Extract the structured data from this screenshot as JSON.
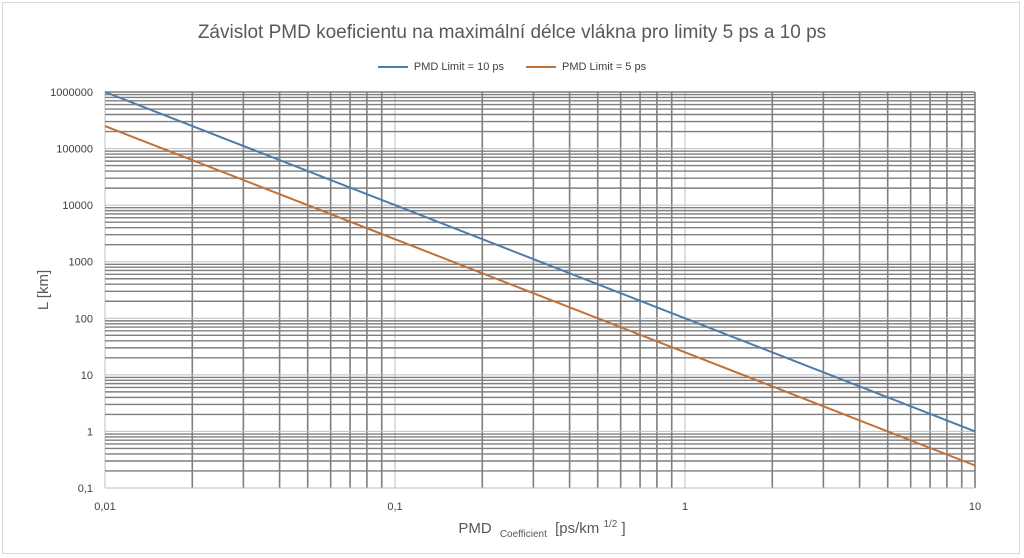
{
  "chart_data": {
    "type": "line",
    "title": "Závislot PMD koeficientu na maximální délce vlákna pro limity 5 ps a 10 ps",
    "xlabel": {
      "main": "PMD",
      "subscript": "Coefficient",
      "unit_base": "[ps/km",
      "unit_sup": "1/2",
      "unit_end": "]"
    },
    "ylabel": "L [km]",
    "x_scale": "log",
    "y_scale": "log",
    "xlim": [
      0.01,
      10
    ],
    "ylim": [
      0.1,
      1000000
    ],
    "x_ticks": [
      {
        "value": 0.01,
        "label": "0,01"
      },
      {
        "value": 0.1,
        "label": "0,1"
      },
      {
        "value": 1,
        "label": "1"
      },
      {
        "value": 10,
        "label": "10"
      }
    ],
    "y_ticks": [
      {
        "value": 0.1,
        "label": "0,1"
      },
      {
        "value": 1,
        "label": "1"
      },
      {
        "value": 10,
        "label": "10"
      },
      {
        "value": 100,
        "label": "100"
      },
      {
        "value": 1000,
        "label": "1000"
      },
      {
        "value": 10000,
        "label": "10000"
      },
      {
        "value": 100000,
        "label": "100000"
      },
      {
        "value": 1000000,
        "label": "1000000"
      }
    ],
    "grid": true,
    "legend_position": "top-center",
    "series": [
      {
        "name": "PMD Limit = 10 ps",
        "color": "#4f7ca8",
        "x": [
          0.01,
          0.1,
          1,
          10
        ],
        "y": [
          1000000,
          10000,
          100,
          1
        ]
      },
      {
        "name": "PMD Limit = 5 ps",
        "color": "#c0713a",
        "x": [
          0.01,
          0.1,
          1,
          10
        ],
        "y": [
          250000,
          2500,
          25,
          0.25
        ]
      }
    ]
  }
}
